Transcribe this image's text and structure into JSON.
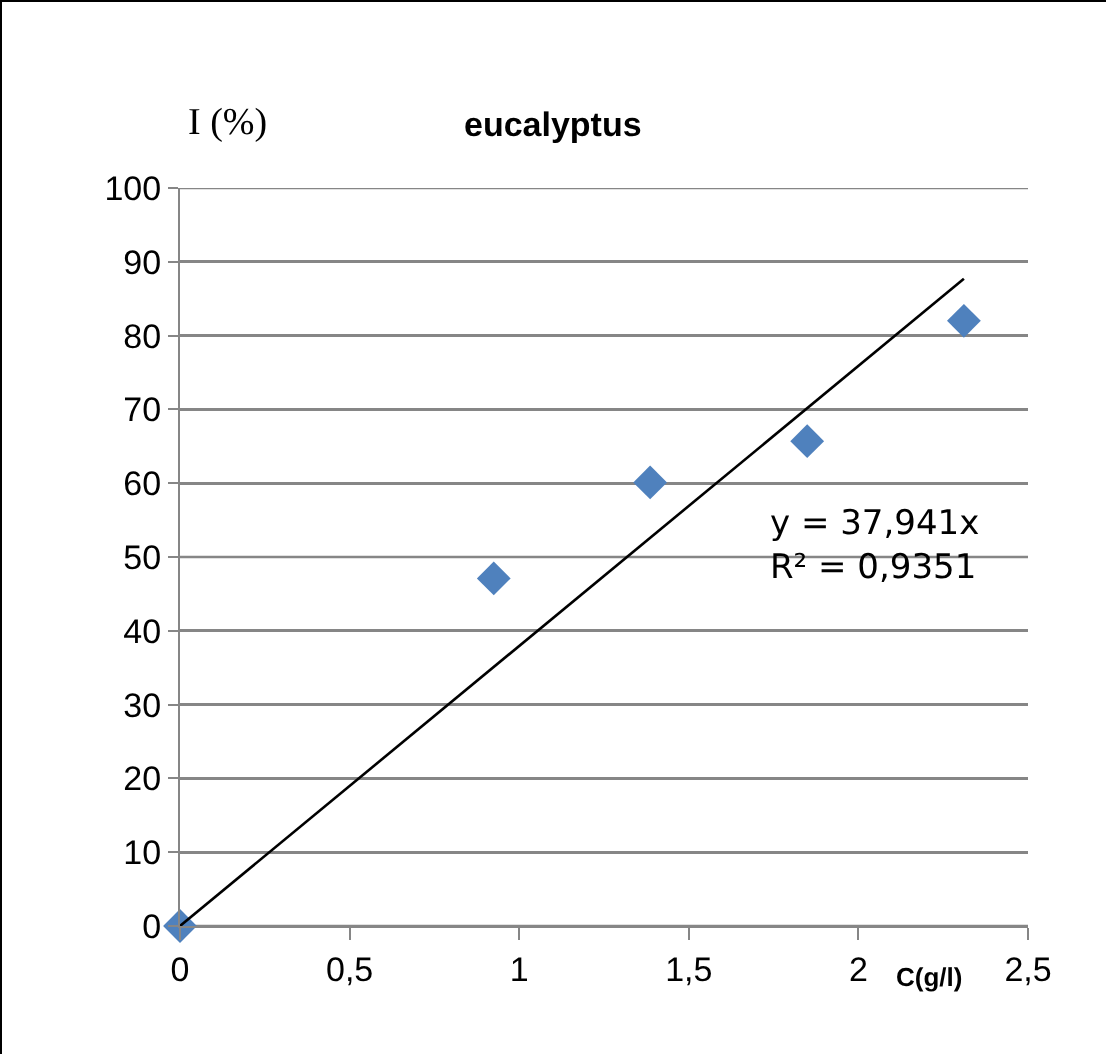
{
  "chart_data": {
    "type": "scatter",
    "title": "eucalyptus",
    "ylabel": "I (%)",
    "xlabel": "C(g/l)",
    "annotations": [
      "y = 37,941x\nR² = 0,9351"
    ],
    "x": [
      0,
      0.925,
      1.386,
      1.849,
      2.311
    ],
    "series": [
      {
        "color": "#4f81bd",
        "values": [
          0,
          47.1,
          60.1,
          65.7,
          82.0
        ],
        "marker": "diamond"
      },
      {
        "type": "line",
        "color": "#000000",
        "x": [
          0,
          2.311
        ],
        "values": [
          0,
          87.7
        ],
        "marker": "none",
        "line_style": "solid"
      }
    ],
    "xlim": [
      0,
      2.5
    ],
    "xticks": [
      0,
      {
        "value": 0.5,
        "label": "0,5"
      },
      1,
      {
        "value": 1.5,
        "label": "1,5"
      },
      2,
      {
        "value": 2.5,
        "label": "2,5"
      }
    ],
    "ylim": [
      0,
      100
    ],
    "yticks": [
      0,
      10,
      20,
      30,
      40,
      50,
      60,
      70,
      80,
      90,
      100
    ],
    "grid": "y"
  }
}
